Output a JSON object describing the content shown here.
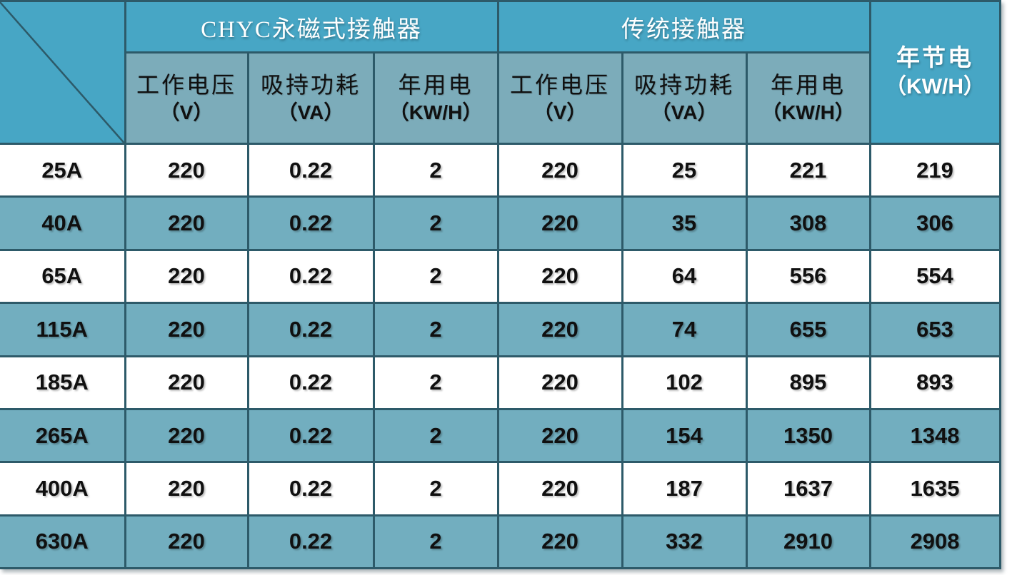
{
  "ui": {
    "header": {
      "savings": {
        "name": "年节电",
        "unit": "（KW/H）"
      },
      "sub": [
        {
          "name": "工作电压",
          "unit": "（V）"
        },
        {
          "name": "吸持功耗",
          "unit": "（VA）"
        },
        {
          "name": "年用电",
          "unit": "（KW/H）"
        },
        {
          "name": "工作电压",
          "unit": "（V）"
        },
        {
          "name": "吸持功耗",
          "unit": "（VA）"
        },
        {
          "name": "年用电",
          "unit": "（KW/H）"
        }
      ]
    },
    "colors": {
      "header_blue": "#47a6c5",
      "subheader_teal": "#7cacba",
      "row_teal": "#72aebf",
      "row_white": "#ffffff",
      "border": "#2d5a69",
      "header_text": "#ffffff",
      "cell_text": "#101010"
    }
  },
  "chart_data": {
    "type": "table",
    "column_groups": [
      {
        "label": "CHYC永磁式接触器",
        "columns": [
          "工作电压（V）",
          "吸持功耗（VA）",
          "年用电（KW/H）"
        ]
      },
      {
        "label": "传统接触器",
        "columns": [
          "工作电压（V）",
          "吸持功耗（VA）",
          "年用电（KW/H）"
        ]
      }
    ],
    "savings_column": "年节电（KW/H）",
    "rows": [
      {
        "spec": "25A",
        "values": [
          "220",
          "0.22",
          "2",
          "220",
          "25",
          "221",
          "219"
        ]
      },
      {
        "spec": "40A",
        "values": [
          "220",
          "0.22",
          "2",
          "220",
          "35",
          "308",
          "306"
        ]
      },
      {
        "spec": "65A",
        "values": [
          "220",
          "0.22",
          "2",
          "220",
          "64",
          "556",
          "554"
        ]
      },
      {
        "spec": "115A",
        "values": [
          "220",
          "0.22",
          "2",
          "220",
          "74",
          "655",
          "653"
        ]
      },
      {
        "spec": "185A",
        "values": [
          "220",
          "0.22",
          "2",
          "220",
          "102",
          "895",
          "893"
        ]
      },
      {
        "spec": "265A",
        "values": [
          "220",
          "0.22",
          "2",
          "220",
          "154",
          "1350",
          "1348"
        ]
      },
      {
        "spec": "400A",
        "values": [
          "220",
          "0.22",
          "2",
          "220",
          "187",
          "1637",
          "1635"
        ]
      },
      {
        "spec": "630A",
        "values": [
          "220",
          "0.22",
          "2",
          "220",
          "332",
          "2910",
          "2908"
        ]
      }
    ]
  }
}
